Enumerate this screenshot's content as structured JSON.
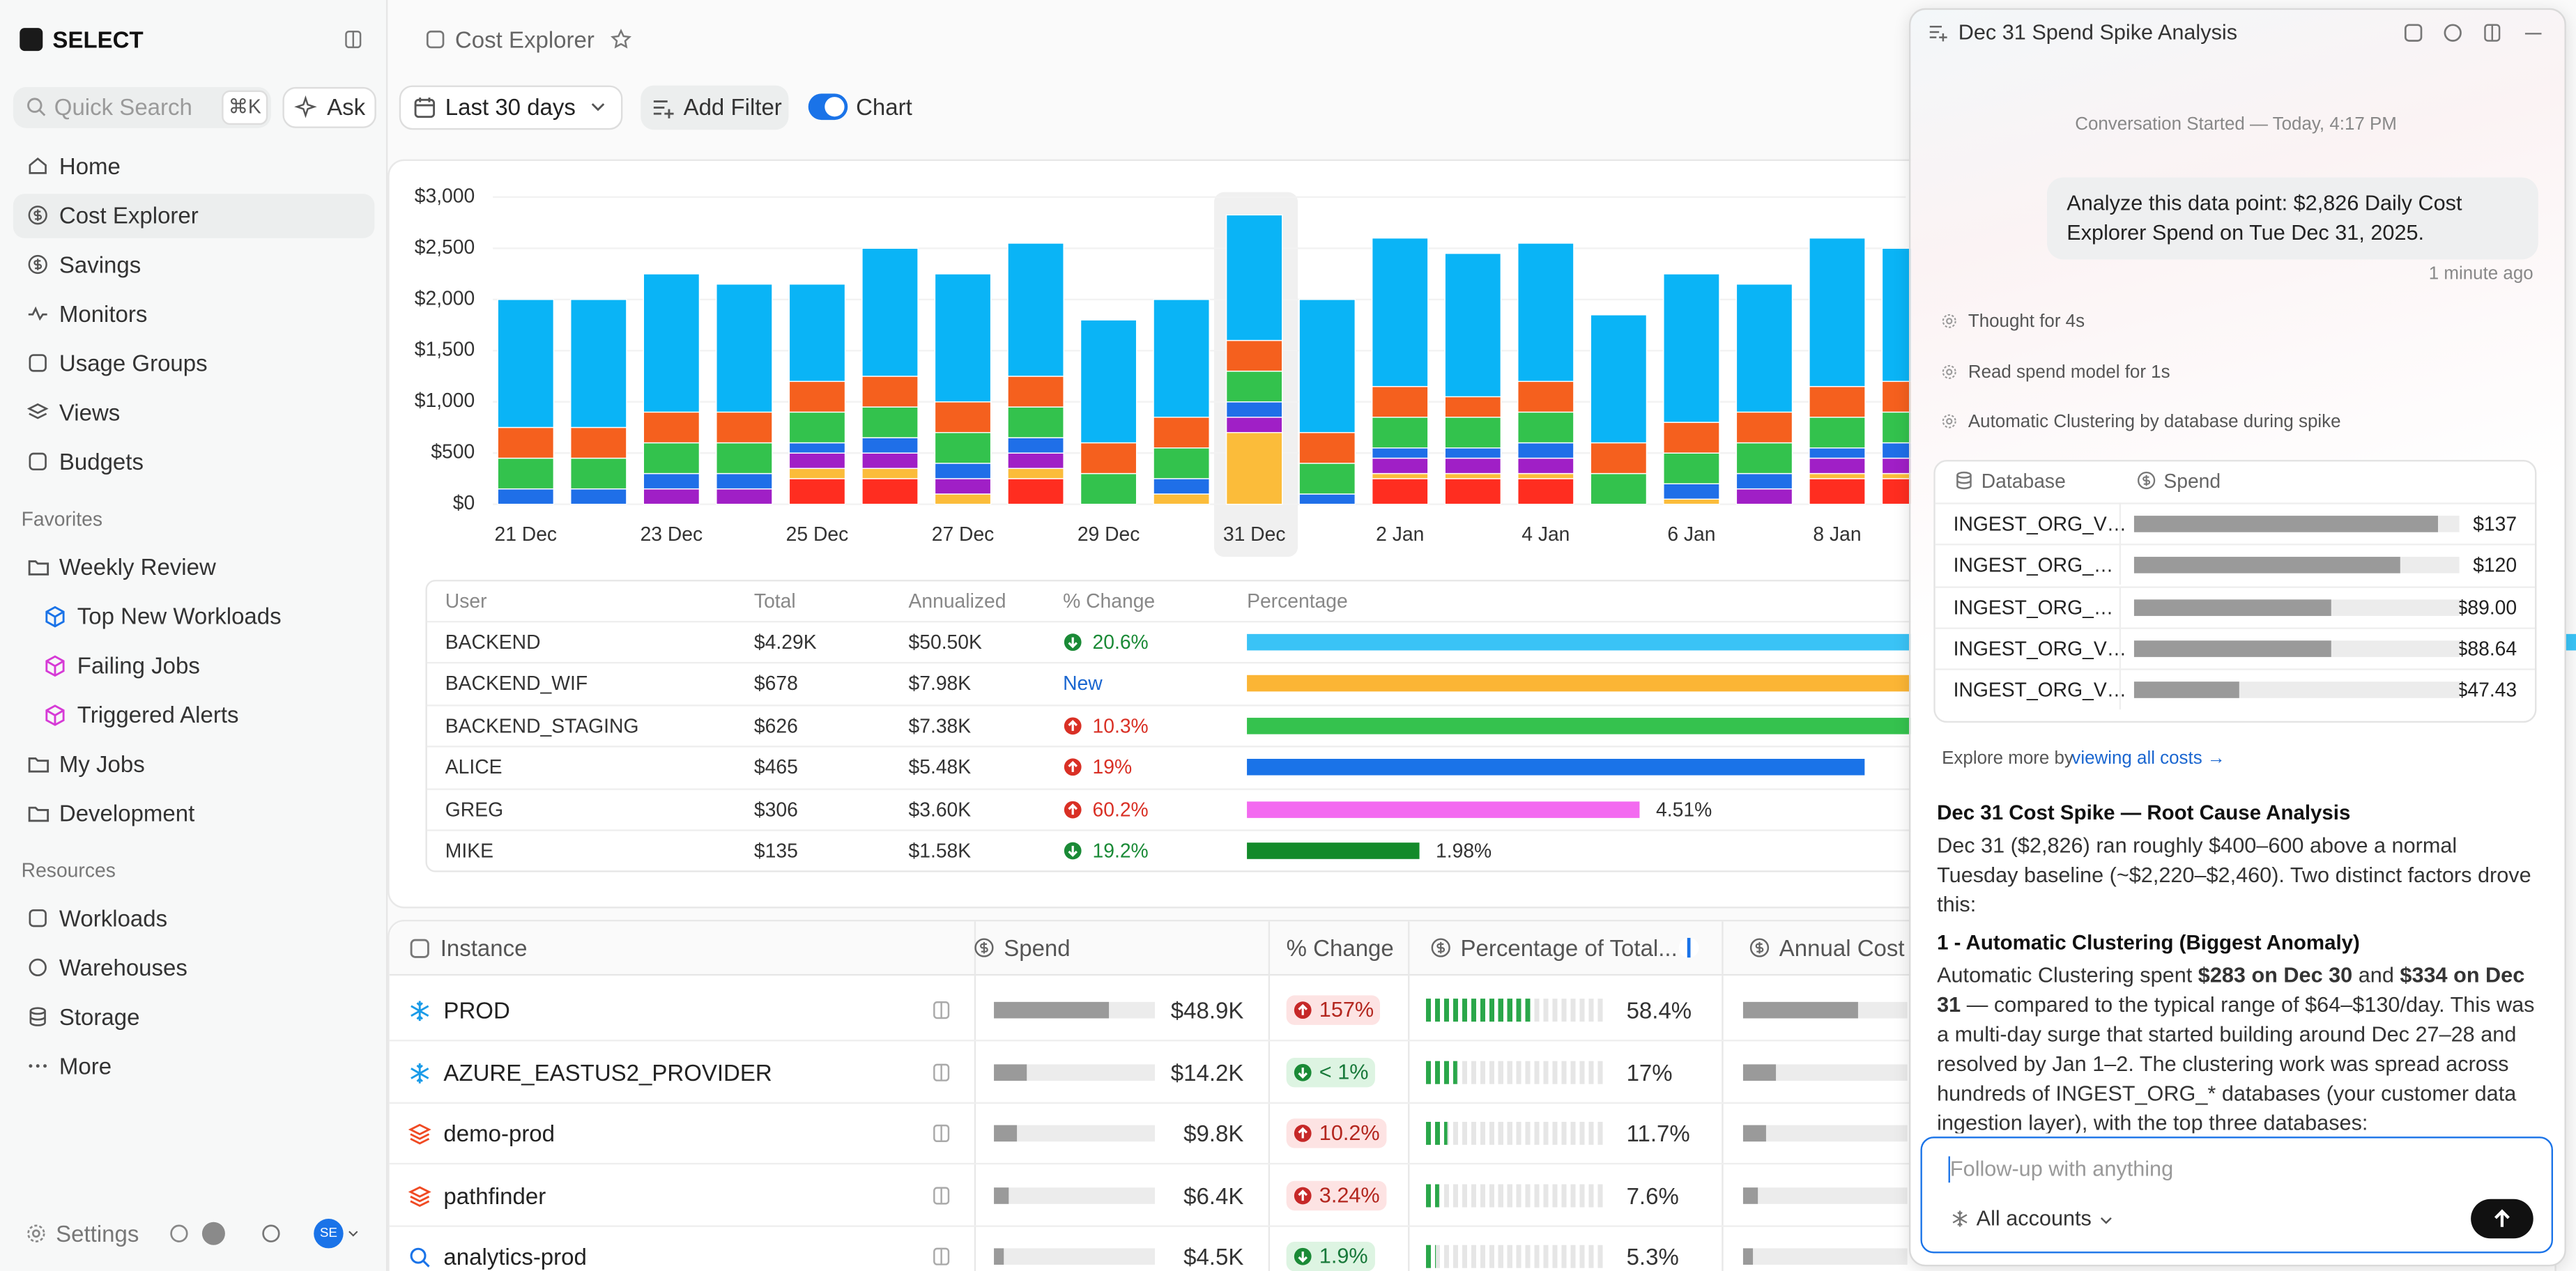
{
  "sidebar": {
    "brand": "SELECT",
    "search_placeholder": "Quick Search",
    "search_shortcut": "⌘K",
    "ask": "Ask",
    "nav": [
      "Home",
      "Cost Explorer",
      "Savings",
      "Monitors",
      "Usage Groups",
      "Views",
      "Budgets"
    ],
    "favorites_heading": "Favorites",
    "favorites": [
      "Weekly Review",
      "Top New Workloads",
      "Failing Jobs",
      "Triggered Alerts",
      "My Jobs",
      "Development"
    ],
    "resources_heading": "Resources",
    "resources": [
      "Workloads",
      "Warehouses",
      "Storage",
      "More"
    ],
    "settings": "Settings",
    "avatar": "SE"
  },
  "header": {
    "title": "Cost Explorer",
    "date_range": "Last 30 days",
    "add_filter": "Add Filter",
    "chart_toggle": "Chart"
  },
  "chart_data": {
    "type": "bar",
    "stacked": true,
    "grid": true,
    "categories": [
      "21 Dec",
      null,
      "23 Dec",
      null,
      "25 Dec",
      null,
      "27 Dec",
      null,
      "29 Dec",
      null,
      "31 Dec",
      null,
      "2 Jan",
      null,
      "4 Jan",
      null,
      "6 Jan",
      null,
      "8 Jan",
      null
    ],
    "ylim": [
      0,
      3000
    ],
    "yticks": [
      {
        "value": 0,
        "label": "$0"
      },
      {
        "value": 500,
        "label": "$500"
      },
      {
        "value": 1000,
        "label": "$1,000"
      },
      {
        "value": 1500,
        "label": "$1,500"
      },
      {
        "value": 2000,
        "label": "$2,000"
      },
      {
        "value": 2500,
        "label": "$2,500"
      },
      {
        "value": 3000,
        "label": "$3,000"
      }
    ],
    "series": [
      {
        "color": "#ff2d20",
        "values": [
          0,
          0,
          0,
          0,
          250,
          250,
          0,
          250,
          0,
          0,
          0,
          0,
          250,
          250,
          250,
          0,
          0,
          0,
          250,
          250
        ]
      },
      {
        "color": "#fbbc3a",
        "values": [
          0,
          0,
          0,
          0,
          100,
          100,
          100,
          100,
          0,
          100,
          700,
          0,
          50,
          50,
          50,
          0,
          50,
          0,
          50,
          50
        ]
      },
      {
        "color": "#a01fc6",
        "values": [
          0,
          0,
          150,
          150,
          150,
          150,
          150,
          150,
          0,
          0,
          150,
          0,
          150,
          150,
          150,
          0,
          0,
          150,
          150,
          150
        ]
      },
      {
        "color": "#1f6fe8",
        "values": [
          150,
          150,
          150,
          150,
          100,
          150,
          150,
          150,
          0,
          150,
          150,
          100,
          100,
          100,
          150,
          0,
          150,
          150,
          100,
          150
        ]
      },
      {
        "color": "#33c24d",
        "values": [
          300,
          300,
          300,
          300,
          300,
          300,
          300,
          300,
          300,
          300,
          300,
          300,
          300,
          300,
          300,
          300,
          300,
          300,
          300,
          300
        ]
      },
      {
        "color": "#f5601e",
        "values": [
          300,
          300,
          300,
          300,
          300,
          300,
          300,
          300,
          300,
          300,
          300,
          300,
          300,
          200,
          300,
          300,
          300,
          300,
          300,
          300
        ]
      },
      {
        "color": "#0ab4f6",
        "values": [
          1250,
          1250,
          1350,
          1250,
          950,
          1250,
          1250,
          1300,
          1200,
          1150,
          1226,
          1300,
          1450,
          1400,
          1350,
          1250,
          1450,
          1250,
          1450,
          1300
        ]
      }
    ]
  },
  "users_table": {
    "columns": [
      "User",
      "Total",
      "Annualized",
      "% Change",
      "Percentage"
    ],
    "rows": [
      {
        "user": "BACKEND",
        "total": "$4.29K",
        "annualized": "$50.50K",
        "change": "20.6%",
        "trend": "down",
        "percentage": 63,
        "color": "#3ac3f6"
      },
      {
        "user": "BACKEND_WIF",
        "total": "$678",
        "annualized": "$7.98K",
        "change": "New",
        "percentage": 9.94,
        "color": "#fbb535"
      },
      {
        "user": "BACKEND_STAGING",
        "total": "$626",
        "annualized": "$7.38K",
        "change": "10.3%",
        "trend": "up",
        "percentage": 9.18,
        "color": "#35c24e"
      },
      {
        "user": "ALICE",
        "total": "$465",
        "annualized": "$5.48K",
        "change": "19%",
        "trend": "up",
        "percentage": 7.1,
        "color": "#1a73e8"
      },
      {
        "user": "GREG",
        "total": "$306",
        "annualized": "$3.60K",
        "change": "60.2%",
        "trend": "up",
        "percentage": 4.51,
        "percentage_label": "4.51%",
        "color": "#f36af0"
      },
      {
        "user": "MIKE",
        "total": "$135",
        "annualized": "$1.58K",
        "change": "19.2%",
        "trend": "down",
        "percentage": 1.98,
        "percentage_label": "1.98%",
        "color": "#138a2a"
      }
    ]
  },
  "instances_table": {
    "columns": [
      "Instance",
      "Spend",
      "% Change",
      "Percentage of Total...",
      "Annual Cost"
    ],
    "rows": [
      {
        "name": "PROD",
        "icon": "snowflake",
        "spend": 48900,
        "spend_label": "$48.9K",
        "change": "157%",
        "trend": "up",
        "share": 58.4,
        "share_label": "58.4%",
        "annual_cost": 595000
      },
      {
        "name": "AZURE_EASTUS2_PROVIDER",
        "icon": "snowflake",
        "spend": 14200,
        "spend_label": "$14.2K",
        "change": "< 1%",
        "trend": "down",
        "share": 17,
        "share_label": "17%",
        "annual_cost": 172800
      },
      {
        "name": "demo-prod",
        "icon": "stack",
        "spend": 9800,
        "spend_label": "$9.8K",
        "change": "10.2%",
        "trend": "up",
        "share": 11.7,
        "share_label": "11.7%",
        "annual_cost": 119200
      },
      {
        "name": "pathfinder",
        "icon": "stack",
        "spend": 6400,
        "spend_label": "$6.4K",
        "change": "3.24%",
        "trend": "up",
        "share": 7.6,
        "share_label": "7.6%",
        "annual_cost": 77900
      },
      {
        "name": "analytics-prod",
        "icon": "search",
        "spend": 4500,
        "spend_label": "$4.5K",
        "change": "1.9%",
        "trend": "down",
        "share": 5.3,
        "share_label": "5.3%",
        "annual_cost": 54800
      }
    ]
  },
  "assistant": {
    "title": "Dec 31 Spend Spike Analysis",
    "started": "Conversation Started — Today, 4:17 PM",
    "user_message": "Analyze this data point: $2,826 Daily Cost Explorer Spend on Tue Dec 31, 2025.",
    "message_time": "1 minute ago",
    "steps": [
      "Thought for 4s",
      "Read spend model for 1s",
      "Automatic Clustering by database during spike"
    ],
    "db_table": {
      "columns": [
        "Database",
        "Spend"
      ],
      "rows": [
        {
          "database": "INGEST_ORG_V…",
          "spend": 137,
          "spend_label": "$137"
        },
        {
          "database": "INGEST_ORG_…",
          "spend": 120,
          "spend_label": "$120"
        },
        {
          "database": "INGEST_ORG_…",
          "spend": 89,
          "spend_label": "$89.00"
        },
        {
          "database": "INGEST_ORG_V…",
          "spend": 88.64,
          "spend_label": "$88.64"
        },
        {
          "database": "INGEST_ORG_V…",
          "spend": 47.43,
          "spend_label": "$47.43"
        }
      ]
    },
    "explore_prefix": "Explore more by",
    "explore_link": "viewing all costs →",
    "heading": "Dec 31 Cost Spike — Root Cause Analysis",
    "intro": "Dec 31 ($2,826) ran roughly $400–600 above a normal Tuesday baseline (~$2,220–$2,460). Two distinct factors drove this:",
    "section_heading": "1 - Automatic Clustering (Biggest Anomaly)",
    "section_parts": [
      "Automatic Clustering spent ",
      "$283 on Dec 30",
      " and ",
      "$334 on Dec 31",
      " — compared to the typical range of $64–$130/day. This was a multi-day surge that started building around Dec 27–28 and resolved by Jan 1–2. The clustering work was spread across hundreds of INGEST_ORG_* databases (your customer data ingestion layer), with the top three databases:"
    ],
    "input_placeholder": "Follow-up with anything",
    "account_selector": "All accounts"
  }
}
